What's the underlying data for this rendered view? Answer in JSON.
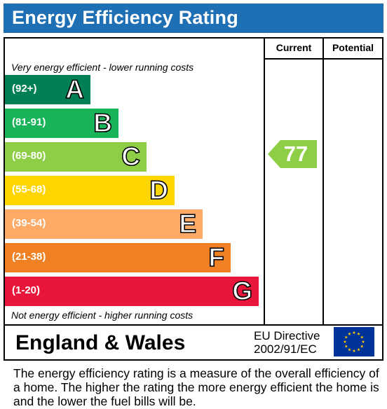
{
  "title": "Energy Efficiency Rating",
  "columns": {
    "current": "Current",
    "potential": "Potential"
  },
  "notes": {
    "top": "Very energy efficient - lower running costs",
    "bottom": "Not energy efficient - higher running costs"
  },
  "footer": {
    "region": "England & Wales",
    "directive_line1": "EU Directive",
    "directive_line2": "2002/91/EC",
    "flag_icon": "eu-flag-icon"
  },
  "description": "The energy efficiency rating is a measure of the overall efficiency of a home.  The higher the rating the more energy efficient the home is and the lower the fuel bills will be.",
  "colors": {
    "title_bar": "#1f6fb4",
    "band_A": "#008054",
    "band_B": "#19b459",
    "band_C": "#8dce46",
    "band_D": "#ffd500",
    "band_E": "#fcaa65",
    "band_F": "#ef8023",
    "band_G": "#e9153b"
  },
  "chart_data": {
    "type": "bar",
    "categories": [
      "A",
      "B",
      "C",
      "D",
      "E",
      "F",
      "G"
    ],
    "ranges": [
      "(92+)",
      "(81-91)",
      "(69-80)",
      "(55-68)",
      "(39-54)",
      "(21-38)",
      "(1-20)"
    ],
    "colors": [
      "#008054",
      "#19b459",
      "#8dce46",
      "#ffd500",
      "#fcaa65",
      "#ef8023",
      "#e9153b"
    ],
    "current": {
      "value": 77,
      "band": "C",
      "color": "#8dce46"
    },
    "potential": null
  }
}
